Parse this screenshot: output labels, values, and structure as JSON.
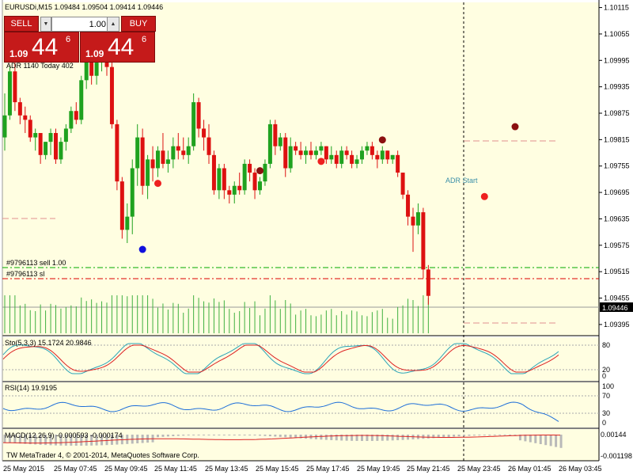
{
  "header": {
    "symbol_info": "EURUSDi,M15  1.09484 1.09504 1.09414 1.09446",
    "adr_text": "ADR 1140  Today 402"
  },
  "trade_panel": {
    "sell_label": "SELL",
    "buy_label": "BUY",
    "lot_value": "1.00",
    "sell_price_small": "1.09",
    "sell_price_big": "44",
    "sell_price_sup": "6",
    "buy_price_small": "1.09",
    "buy_price_big": "44",
    "buy_price_sup": "6"
  },
  "chart_labels": {
    "order_sell": "#9796113 sell 1.00",
    "order_sl": "#9796113 sl",
    "adr_start": "ADR Start",
    "current_price": "1.09446"
  },
  "price_axis": [
    "1.10115",
    "1.10055",
    "1.09995",
    "1.09935",
    "1.09875",
    "1.09815",
    "1.09755",
    "1.09695",
    "1.09635",
    "1.09575",
    "1.09515",
    "1.09455",
    "1.09395"
  ],
  "sto": {
    "label": "Sto(5,3,3) 15.1724 20.9846",
    "levels": [
      "80",
      "20",
      "0"
    ]
  },
  "rsi": {
    "label": "RSI(14) 19.9195",
    "levels": [
      "100",
      "70",
      "30",
      "0"
    ]
  },
  "macd": {
    "label": "MACD(12,26,9) -0.000593 -0.000174",
    "levels": [
      "0.00144",
      "-0.001198"
    ]
  },
  "copyright": "TW MetaTrader 4, © 2001-2014, MetaQuotes Software Corp.",
  "time_axis": [
    "25 May 2015",
    "25 May 07:45",
    "25 May 09:45",
    "25 May 11:45",
    "25 May 13:45",
    "25 May 15:45",
    "25 May 17:45",
    "25 May 19:45",
    "25 May 21:45",
    "25 May 23:45",
    "26 May 01:45",
    "26 May 03:45"
  ],
  "colors": {
    "background": "#fffee1",
    "bull": "#1fa21f",
    "bear": "#dd1111",
    "order_line": "#00aa00",
    "sl_line": "#dd0000"
  },
  "chart_data": {
    "type": "candlestick",
    "title": "EURUSDi,M15",
    "ylim": [
      1.09375,
      1.10125
    ],
    "candles": [
      [
        1.0982,
        1.0992,
        1.0979,
        1.0987
      ],
      [
        1.0987,
        1.0998,
        1.0986,
        1.0997
      ],
      [
        1.0997,
        1.0999,
        1.0988,
        1.099
      ],
      [
        1.099,
        1.0991,
        1.0985,
        1.0987
      ],
      [
        1.0987,
        1.0989,
        1.0983,
        1.0986
      ],
      [
        1.0986,
        1.0987,
        1.0981,
        1.0982
      ],
      [
        1.0982,
        1.0984,
        1.0979,
        1.0983
      ],
      [
        1.0983,
        1.0983,
        1.0976,
        1.0978
      ],
      [
        1.0978,
        1.0981,
        1.0977,
        1.0981
      ],
      [
        1.0981,
        1.0984,
        1.0978,
        1.0983
      ],
      [
        1.0983,
        1.0984,
        1.0976,
        1.0977
      ],
      [
        1.0977,
        1.0982,
        1.0976,
        1.0981
      ],
      [
        1.0981,
        1.0985,
        1.0979,
        1.0984
      ],
      [
        1.0984,
        1.0989,
        1.0983,
        1.0988
      ],
      [
        1.0988,
        1.099,
        1.0985,
        1.0986
      ],
      [
        1.0986,
        1.0996,
        1.0985,
        1.0995
      ],
      [
        1.0995,
        1.1002,
        1.0993,
        1.1
      ],
      [
        1.1,
        1.1003,
        1.0994,
        1.0996
      ],
      [
        1.0996,
        1.1001,
        1.0994,
        1.0999
      ],
      [
        1.0999,
        1.1004,
        1.0997,
        1.1002
      ],
      [
        1.1002,
        1.1005,
        1.0996,
        1.0998
      ],
      [
        1.0998,
        1.1,
        1.0984,
        1.0985
      ],
      [
        1.0985,
        1.0986,
        1.097,
        1.0972
      ],
      [
        1.0972,
        1.0973,
        1.0959,
        1.0961
      ],
      [
        1.0961,
        1.0967,
        1.0958,
        1.0964
      ],
      [
        1.0964,
        1.0977,
        1.096,
        1.0975
      ],
      [
        1.0975,
        1.0985,
        1.0971,
        1.0982
      ],
      [
        1.0982,
        1.0984,
        1.0969,
        1.0971
      ],
      [
        1.0971,
        1.0978,
        1.0968,
        1.0977
      ],
      [
        1.0977,
        1.098,
        1.0972,
        1.0975
      ],
      [
        1.0975,
        1.098,
        1.0973,
        1.0979
      ],
      [
        1.0979,
        1.0983,
        1.0975,
        1.0976
      ],
      [
        1.0976,
        1.0979,
        1.0974,
        1.0977
      ],
      [
        1.0977,
        1.0982,
        1.0975,
        1.098
      ],
      [
        1.098,
        1.0983,
        1.0977,
        1.0979
      ],
      [
        1.0979,
        1.0982,
        1.0977,
        1.0978
      ],
      [
        1.0978,
        1.0982,
        1.0976,
        1.098
      ],
      [
        1.098,
        1.0992,
        1.0979,
        1.099
      ],
      [
        1.099,
        1.0991,
        1.0982,
        1.0984
      ],
      [
        1.0984,
        1.0986,
        1.0979,
        1.0982
      ],
      [
        1.0982,
        1.0985,
        1.0976,
        1.0978
      ],
      [
        1.0978,
        1.0979,
        1.0969,
        1.097
      ],
      [
        1.097,
        1.0976,
        1.0968,
        1.0975
      ],
      [
        1.0975,
        1.0976,
        1.0968,
        1.097
      ],
      [
        1.097,
        1.0971,
        1.0967,
        1.0969
      ],
      [
        1.0969,
        1.0972,
        1.0967,
        1.0971
      ],
      [
        1.0971,
        1.0974,
        1.0969,
        1.097
      ],
      [
        1.097,
        1.0977,
        1.0969,
        1.0976
      ],
      [
        1.0976,
        1.0977,
        1.0972,
        1.0974
      ],
      [
        1.0974,
        1.0975,
        1.0968,
        1.097
      ],
      [
        1.097,
        1.0973,
        1.0969,
        1.0972
      ],
      [
        1.0972,
        1.0977,
        1.0971,
        1.0976
      ],
      [
        1.0976,
        1.0986,
        1.0975,
        1.0985
      ],
      [
        1.0985,
        1.0986,
        1.0978,
        1.098
      ],
      [
        1.098,
        1.0983,
        1.0979,
        1.0982
      ],
      [
        1.0982,
        1.0983,
        1.0973,
        1.0975
      ],
      [
        1.0975,
        1.0982,
        1.0974,
        1.098
      ],
      [
        1.098,
        1.0981,
        1.0978,
        1.0979
      ],
      [
        1.0979,
        1.0981,
        1.0977,
        1.0978
      ],
      [
        1.0978,
        1.098,
        1.0976,
        1.0979
      ],
      [
        1.0979,
        1.0981,
        1.0977,
        1.0978
      ],
      [
        1.0978,
        1.098,
        1.0977,
        1.0979
      ],
      [
        1.0979,
        1.0981,
        1.0978,
        1.098
      ],
      [
        1.098,
        1.098,
        1.0976,
        1.0977
      ],
      [
        1.0977,
        1.098,
        1.0976,
        1.0978
      ],
      [
        1.0978,
        1.0979,
        1.0975,
        1.0976
      ],
      [
        1.0976,
        1.098,
        1.0975,
        1.0979
      ],
      [
        1.0979,
        1.098,
        1.0977,
        1.0978
      ],
      [
        1.0978,
        1.0979,
        1.0975,
        1.0976
      ],
      [
        1.0976,
        1.0978,
        1.0975,
        1.0977
      ],
      [
        1.0977,
        1.098,
        1.0976,
        1.0979
      ],
      [
        1.0979,
        1.0981,
        1.0978,
        1.098
      ],
      [
        1.098,
        1.0981,
        1.0977,
        1.0978
      ],
      [
        1.0978,
        1.0979,
        1.0975,
        1.0977
      ],
      [
        1.0977,
        1.098,
        1.0976,
        1.0979
      ],
      [
        1.0979,
        1.0979,
        1.0976,
        1.0977
      ],
      [
        1.0977,
        1.0978,
        1.0976,
        1.0978
      ],
      [
        1.0978,
        1.0979,
        1.0973,
        1.0974
      ],
      [
        1.0974,
        1.0974,
        1.0968,
        1.0969
      ],
      [
        1.0969,
        1.097,
        1.0962,
        1.0964
      ],
      [
        1.0964,
        1.0966,
        1.0956,
        1.0962
      ],
      [
        1.0962,
        1.0967,
        1.096,
        1.0965
      ],
      [
        1.0965,
        1.0966,
        1.095,
        1.0952
      ],
      [
        1.0952,
        1.0953,
        1.0944,
        1.0946
      ]
    ],
    "markers": [
      {
        "type": "high",
        "index": 50,
        "value": 1.099
      },
      {
        "type": "high",
        "index": 74,
        "value": 1.0986
      },
      {
        "type": "high",
        "index": 100,
        "value": 1.0983
      },
      {
        "type": "low",
        "index": 30,
        "value": 1.096
      },
      {
        "type": "low",
        "index": 62,
        "value": 1.0966
      },
      {
        "type": "low",
        "index": 94,
        "value": 1.097
      }
    ],
    "levels": [
      {
        "name": "#9796113 sell 1.00",
        "value": 1.09536
      },
      {
        "name": "#9796113 sl",
        "value": 1.09513
      },
      {
        "name": "current",
        "value": 1.09446
      }
    ]
  }
}
